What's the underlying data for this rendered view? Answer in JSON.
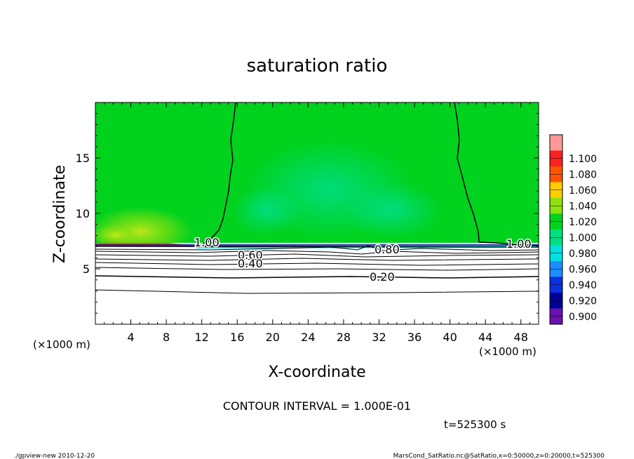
{
  "chart_data": {
    "type": "heatmap",
    "title": "saturation ratio",
    "xlabel": "X-coordinate",
    "ylabel": "Z-coordinate",
    "x_unit_left": "(×1000 m)",
    "x_unit_right": "(×1000 m)",
    "xlim": [
      0,
      50
    ],
    "ylim": [
      0,
      20
    ],
    "x_ticks": [
      4,
      8,
      12,
      16,
      20,
      24,
      28,
      32,
      36,
      40,
      44,
      48
    ],
    "y_ticks": [
      5,
      10,
      15
    ],
    "colorbar": {
      "levels": [
        0.9,
        0.92,
        0.94,
        0.96,
        0.98,
        1.0,
        1.02,
        1.04,
        1.06,
        1.08,
        1.1
      ],
      "labels": [
        "0.900",
        "0.920",
        "0.940",
        "0.960",
        "0.980",
        "1.000",
        "1.020",
        "1.040",
        "1.060",
        "1.080",
        "1.100"
      ],
      "colors": [
        "#6a0fb0",
        "#000099",
        "#0a30e0",
        "#1e8cff",
        "#00e0e0",
        "#00e080",
        "#00d21e",
        "#8ee010",
        "#ffcc00",
        "#ff5500",
        "#ff2020",
        "#ff9999"
      ]
    },
    "contours": [
      {
        "level": 1.0,
        "label": "1.00"
      },
      {
        "level": 1.0,
        "label": "1.00"
      },
      {
        "level": 0.8,
        "label": "0.80"
      },
      {
        "level": 0.6,
        "label": "0.60"
      },
      {
        "level": 0.4,
        "label": "0.40"
      },
      {
        "level": 0.2,
        "label": "0.20"
      }
    ],
    "saturated_layer_base_z": 7.3,
    "contour_interval_text": "CONTOUR INTERVAL = 1.000E-01",
    "time_text": "t=525300 s",
    "footer_left": "./gpview-new  2010-12-20",
    "footer_right": "MarsCond_SatRatio.nc@SatRatio,x=0:50000,z=0:20000,t=525300"
  }
}
